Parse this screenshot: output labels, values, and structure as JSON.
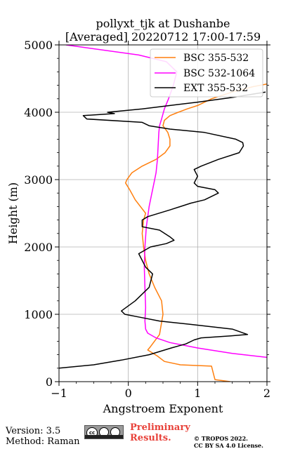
{
  "chart_data": {
    "type": "line",
    "title_line1": "pollyxt_tjk at Dushanbe",
    "title_line2": "[Averaged] 20220712 17:00-17:59",
    "xlabel": "Angstroem Exponent",
    "ylabel": "Height (m)",
    "xlim": [
      -1,
      2
    ],
    "ylim": [
      0,
      5000
    ],
    "xticks": [
      -1,
      0,
      1,
      2
    ],
    "xtick_labels": [
      "−1",
      "0",
      "1",
      "2"
    ],
    "yticks": [
      0,
      1000,
      2000,
      3000,
      4000,
      5000
    ],
    "ytick_labels": [
      "0",
      "1000",
      "2000",
      "3000",
      "4000",
      "5000"
    ],
    "grid": true,
    "legend_position": "upper-right",
    "series": [
      {
        "name": "BSC 355-532",
        "color": "#ff7f0e",
        "x": [
          1.47,
          1.25,
          1.23,
          1.2,
          0.75,
          0.52,
          0.42,
          0.28,
          0.32,
          0.45,
          0.5,
          0.48,
          0.38,
          0.3,
          0.25,
          0.22,
          0.2,
          0.22,
          0.25,
          0.1,
          0.02,
          -0.04,
          -0.02,
          0.05,
          0.2,
          0.4,
          0.53,
          0.6,
          0.6,
          0.57,
          0.5,
          0.52,
          0.6,
          0.72,
          0.85,
          1.0,
          1.2,
          1.5,
          1.8,
          2.0
        ],
        "y": [
          0,
          30,
          110,
          230,
          250,
          300,
          380,
          470,
          520,
          700,
          1000,
          1200,
          1400,
          1600,
          1800,
          2000,
          2200,
          2400,
          2500,
          2700,
          2850,
          2950,
          3000,
          3100,
          3200,
          3300,
          3400,
          3500,
          3600,
          3700,
          3800,
          3880,
          3950,
          4000,
          4050,
          4100,
          4200,
          4300,
          4380,
          4420
        ]
      },
      {
        "name": "BSC 532-1064",
        "color": "#ff00ff",
        "x": [
          2.0,
          1.5,
          1.0,
          0.6,
          0.4,
          0.28,
          0.25,
          0.24,
          0.25,
          0.24,
          0.23,
          0.24,
          0.26,
          0.3,
          0.34,
          0.37,
          0.4,
          0.42,
          0.43,
          0.44,
          0.45,
          0.48,
          0.52,
          0.58,
          0.65,
          0.7,
          0.55,
          0.15,
          -0.9
        ],
        "y": [
          360,
          420,
          500,
          580,
          650,
          720,
          780,
          900,
          1100,
          1400,
          1700,
          2000,
          2300,
          2600,
          2800,
          2950,
          3100,
          3300,
          3500,
          3700,
          3800,
          3900,
          4050,
          4200,
          4400,
          4600,
          4750,
          4850,
          5000
        ]
      },
      {
        "name": "EXT 355-532",
        "color": "#000000",
        "x": [
          -1.0,
          -0.5,
          -0.1,
          0.3,
          0.62,
          0.83,
          0.95,
          1.05,
          1.48,
          1.72,
          1.5,
          0.9,
          0.45,
          0.2,
          -0.05,
          -0.1,
          0.1,
          0.3,
          0.35,
          0.25,
          0.2,
          0.15,
          0.32,
          0.55,
          0.66,
          0.6,
          0.45,
          0.2,
          0.2,
          0.28,
          0.6,
          0.9,
          1.1,
          1.3,
          1.25,
          1.0,
          0.95,
          1.0,
          0.95,
          1.05,
          1.3,
          1.6,
          1.66,
          1.65,
          1.55,
          1.1,
          0.6,
          0.3,
          0.2,
          -0.6,
          -0.65,
          -0.2,
          -0.3,
          0.2,
          0.6,
          1.0,
          1.5,
          1.98
        ],
        "y": [
          200,
          250,
          320,
          400,
          500,
          560,
          620,
          650,
          680,
          700,
          780,
          850,
          900,
          950,
          1000,
          1050,
          1200,
          1400,
          1600,
          1700,
          1800,
          1900,
          2000,
          2050,
          2100,
          2150,
          2250,
          2300,
          2400,
          2450,
          2550,
          2650,
          2700,
          2800,
          2850,
          2900,
          2950,
          3050,
          3150,
          3200,
          3300,
          3400,
          3500,
          3550,
          3600,
          3700,
          3750,
          3800,
          3850,
          3900,
          3950,
          3980,
          4000,
          4050,
          4100,
          4150,
          4220,
          4300
        ]
      }
    ]
  },
  "footer": {
    "version": "Version: 3.5",
    "method": "Method: Raman",
    "prelim_line1": "Preliminary",
    "prelim_line2": "Results.",
    "copyright_line1": "© TROPOS 2022.",
    "copyright_line2": "CC BY SA 4.0 License."
  }
}
